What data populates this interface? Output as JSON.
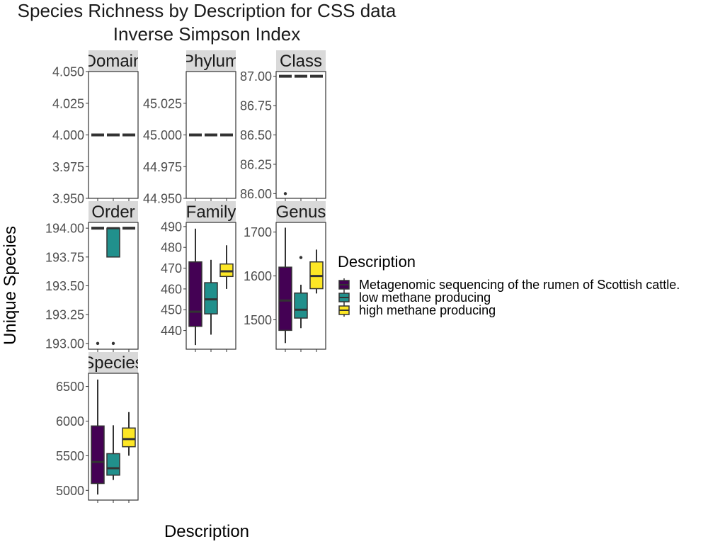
{
  "chart_data": {
    "type": "box",
    "title": "Species Richness by Description for CSS data",
    "subtitle": "Inverse Simpson Index",
    "xlabel": "Description",
    "ylabel": "Unique Species",
    "legend": {
      "title": "Description",
      "placement": "right",
      "entries": [
        {
          "label": "Metagenomic sequencing of the rumen of Scottish cattle.",
          "color": "#440154"
        },
        {
          "label": "low methane producing",
          "color": "#21908C"
        },
        {
          "label": "high methane producing",
          "color": "#FDE725"
        }
      ]
    },
    "panels": [
      {
        "label": "Domain",
        "ylim": [
          3.95,
          4.05
        ],
        "ticks": [
          {
            "v": 4.05,
            "t": "4.050"
          },
          {
            "v": 4.025,
            "t": "4.025"
          },
          {
            "v": 4.0,
            "t": "4.000"
          },
          {
            "v": 3.975,
            "t": "3.975"
          },
          {
            "v": 3.95,
            "t": "3.950"
          }
        ],
        "boxes": [
          {
            "min": 4,
            "q1": 4,
            "median": 4,
            "q3": 4,
            "max": 4,
            "outliers": []
          },
          {
            "min": 4,
            "q1": 4,
            "median": 4,
            "q3": 4,
            "max": 4,
            "outliers": []
          },
          {
            "min": 4,
            "q1": 4,
            "median": 4,
            "q3": 4,
            "max": 4,
            "outliers": []
          }
        ]
      },
      {
        "label": "Phylum",
        "ylim": [
          44.95,
          45.05
        ],
        "ticks": [
          {
            "v": 45.025,
            "t": "45.025"
          },
          {
            "v": 45.0,
            "t": "45.000"
          },
          {
            "v": 44.975,
            "t": "44.975"
          },
          {
            "v": 44.95,
            "t": "44.950"
          }
        ],
        "boxes": [
          {
            "min": 45,
            "q1": 45,
            "median": 45,
            "q3": 45,
            "max": 45,
            "outliers": []
          },
          {
            "min": 45,
            "q1": 45,
            "median": 45,
            "q3": 45,
            "max": 45,
            "outliers": []
          },
          {
            "min": 45,
            "q1": 45,
            "median": 45,
            "q3": 45,
            "max": 45,
            "outliers": []
          }
        ]
      },
      {
        "label": "Class",
        "ylim": [
          85.96,
          87.04
        ],
        "ticks": [
          {
            "v": 87.0,
            "t": "87.00"
          },
          {
            "v": 86.75,
            "t": "86.75"
          },
          {
            "v": 86.5,
            "t": "86.50"
          },
          {
            "v": 86.25,
            "t": "86.25"
          },
          {
            "v": 86.0,
            "t": "86.00"
          }
        ],
        "boxes": [
          {
            "min": 87,
            "q1": 87,
            "median": 87,
            "q3": 87,
            "max": 87,
            "outliers": [
              86
            ]
          },
          {
            "min": 87,
            "q1": 87,
            "median": 87,
            "q3": 87,
            "max": 87,
            "outliers": []
          },
          {
            "min": 87,
            "q1": 87,
            "median": 87,
            "q3": 87,
            "max": 87,
            "outliers": []
          }
        ]
      },
      {
        "label": "Order",
        "ylim": [
          192.95,
          194.05
        ],
        "ticks": [
          {
            "v": 194.0,
            "t": "194.00"
          },
          {
            "v": 193.75,
            "t": "193.75"
          },
          {
            "v": 193.5,
            "t": "193.50"
          },
          {
            "v": 193.25,
            "t": "193.25"
          },
          {
            "v": 193.0,
            "t": "193.00"
          }
        ],
        "boxes": [
          {
            "min": 194,
            "q1": 194,
            "median": 194,
            "q3": 194,
            "max": 194,
            "outliers": [
              193
            ]
          },
          {
            "min": 193.75,
            "q1": 193.75,
            "median": 194,
            "q3": 194,
            "max": 194,
            "outliers": [
              193
            ]
          },
          {
            "min": 194,
            "q1": 194,
            "median": 194,
            "q3": 194,
            "max": 194,
            "outliers": []
          }
        ]
      },
      {
        "label": "Family",
        "ylim": [
          431,
          492
        ],
        "ticks": [
          {
            "v": 490,
            "t": "490"
          },
          {
            "v": 480,
            "t": "480"
          },
          {
            "v": 470,
            "t": "470"
          },
          {
            "v": 460,
            "t": "460"
          },
          {
            "v": 450,
            "t": "450"
          },
          {
            "v": 440,
            "t": "440"
          }
        ],
        "boxes": [
          {
            "min": 433,
            "q1": 442,
            "median": 449,
            "q3": 473,
            "max": 489,
            "outliers": []
          },
          {
            "min": 438,
            "q1": 448,
            "median": 455,
            "q3": 463,
            "max": 474,
            "outliers": []
          },
          {
            "min": 460,
            "q1": 466,
            "median": 468.5,
            "q3": 472,
            "max": 481,
            "outliers": []
          }
        ]
      },
      {
        "label": "Genus",
        "ylim": [
          1433,
          1722
        ],
        "ticks": [
          {
            "v": 1700,
            "t": "1700"
          },
          {
            "v": 1600,
            "t": "1600"
          },
          {
            "v": 1500,
            "t": "1500"
          }
        ],
        "boxes": [
          {
            "min": 1447,
            "q1": 1476,
            "median": 1544,
            "q3": 1620,
            "max": 1710,
            "outliers": []
          },
          {
            "min": 1481,
            "q1": 1504,
            "median": 1523,
            "q3": 1561,
            "max": 1580,
            "outliers": [
              1642
            ]
          },
          {
            "min": 1560,
            "q1": 1571,
            "median": 1600,
            "q3": 1632,
            "max": 1660,
            "outliers": []
          }
        ]
      },
      {
        "label": "Species",
        "ylim": [
          4860,
          6690
        ],
        "ticks": [
          {
            "v": 6500,
            "t": "6500"
          },
          {
            "v": 6000,
            "t": "6000"
          },
          {
            "v": 5500,
            "t": "5500"
          },
          {
            "v": 5000,
            "t": "5000"
          }
        ],
        "boxes": [
          {
            "min": 4940,
            "q1": 5100,
            "median": 5410,
            "q3": 5930,
            "max": 6600,
            "outliers": []
          },
          {
            "min": 5150,
            "q1": 5220,
            "median": 5320,
            "q3": 5530,
            "max": 5940,
            "outliers": []
          },
          {
            "min": 5500,
            "q1": 5630,
            "median": 5740,
            "q3": 5900,
            "max": 6130,
            "outliers": []
          }
        ]
      }
    ]
  }
}
